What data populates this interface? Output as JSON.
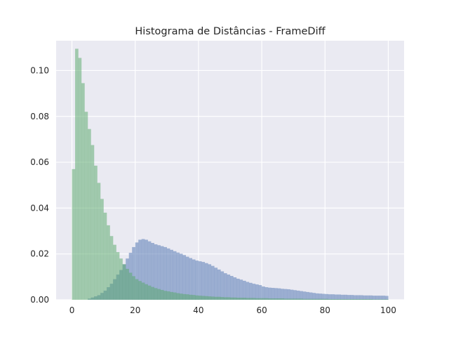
{
  "chart_data": {
    "type": "histogram",
    "title": "Histograma de Distâncias - FrameDiff",
    "xlabel": "",
    "ylabel": "",
    "xlim": [
      -5,
      105
    ],
    "ylim": [
      0,
      0.113
    ],
    "x_ticks": [
      0,
      20,
      40,
      60,
      80,
      100
    ],
    "x_tick_labels": [
      "0",
      "20",
      "40",
      "60",
      "80",
      "100"
    ],
    "y_ticks": [
      0.0,
      0.02,
      0.04,
      0.06,
      0.08,
      0.1
    ],
    "y_tick_labels": [
      "0.00",
      "0.02",
      "0.04",
      "0.06",
      "0.08",
      "0.10"
    ],
    "grid": true,
    "bin_width": 1,
    "bin_start": 0,
    "series": [
      {
        "color": "#4c72b0",
        "opacity": 0.5,
        "values": [
          0.0,
          0.0,
          0.0,
          0.0,
          0.0,
          0.0005,
          0.001,
          0.0015,
          0.002,
          0.003,
          0.004,
          0.0055,
          0.007,
          0.009,
          0.011,
          0.013,
          0.0155,
          0.018,
          0.0205,
          0.023,
          0.025,
          0.0262,
          0.0265,
          0.0262,
          0.0255,
          0.0248,
          0.0242,
          0.0238,
          0.0234,
          0.023,
          0.0224,
          0.0218,
          0.0212,
          0.0206,
          0.0201,
          0.0195,
          0.0188,
          0.0182,
          0.0176,
          0.0171,
          0.0168,
          0.0165,
          0.016,
          0.0155,
          0.0148,
          0.014,
          0.0132,
          0.0124,
          0.0116,
          0.011,
          0.0104,
          0.0098,
          0.0092,
          0.0088,
          0.0083,
          0.0078,
          0.0074,
          0.007,
          0.0067,
          0.0064,
          0.0058,
          0.0055,
          0.0053,
          0.0052,
          0.0051,
          0.005,
          0.0048,
          0.0047,
          0.0046,
          0.0044,
          0.0042,
          0.004,
          0.0038,
          0.0036,
          0.0034,
          0.0032,
          0.003,
          0.0028,
          0.0027,
          0.0026,
          0.0025,
          0.0024,
          0.0024,
          0.0023,
          0.0023,
          0.0022,
          0.0022,
          0.0021,
          0.0021,
          0.002,
          0.002,
          0.002,
          0.0019,
          0.0019,
          0.0019,
          0.0018,
          0.0018,
          0.0018,
          0.0018,
          0.0017
        ]
      },
      {
        "color": "#55a868",
        "opacity": 0.5,
        "values": [
          0.057,
          0.1095,
          0.1055,
          0.0945,
          0.082,
          0.0745,
          0.0675,
          0.0585,
          0.051,
          0.044,
          0.038,
          0.0325,
          0.0278,
          0.024,
          0.0208,
          0.018,
          0.0155,
          0.0135,
          0.0118,
          0.0103,
          0.009,
          0.0082,
          0.0075,
          0.0068,
          0.0062,
          0.0056,
          0.0051,
          0.0047,
          0.0043,
          0.0039,
          0.0037,
          0.0034,
          0.0032,
          0.0029,
          0.0027,
          0.0025,
          0.0024,
          0.0022,
          0.0021,
          0.0019,
          0.0018,
          0.0017,
          0.0016,
          0.0015,
          0.0014,
          0.0013,
          0.0013,
          0.0012,
          0.0011,
          0.0011,
          0.001,
          0.001,
          0.0009,
          0.0009,
          0.0009,
          0.0008,
          0.0008,
          0.0008,
          0.0007,
          0.0007,
          0.0007,
          0.0007,
          0.0006,
          0.0006,
          0.0006,
          0.0006,
          0.0006,
          0.0005,
          0.0005,
          0.0005,
          0.0005,
          0.0005,
          0.0005,
          0.0004,
          0.0004,
          0.0004,
          0.0004,
          0.0004,
          0.0004,
          0.0004,
          0.0004,
          0.0003,
          0.0003,
          0.0003,
          0.0003,
          0.0003,
          0.0003,
          0.0003,
          0.0003,
          0.0003,
          0.0003,
          0.0003,
          0.0003,
          0.0003,
          0.0003,
          0.0002,
          0.0002,
          0.0002,
          0.0002,
          0.0002
        ]
      }
    ]
  },
  "colors": {
    "plot_background": "#eaeaf2",
    "grid": "#ffffff",
    "text": "#262626"
  }
}
